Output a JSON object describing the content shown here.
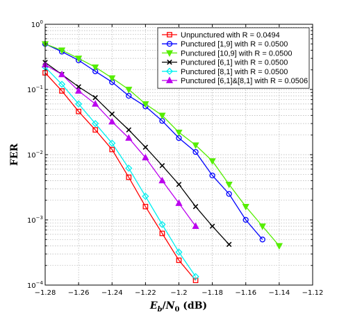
{
  "chart_data": {
    "type": "line",
    "title": "",
    "xlabel": "E_b/N_0 (dB)",
    "ylabel": "FER",
    "xlim": [
      -1.28,
      -1.12
    ],
    "ylim": [
      0.0001,
      1
    ],
    "yscale": "log",
    "grid": true,
    "legend_position": "top-right",
    "x_ticks": [
      -1.28,
      -1.26,
      -1.24,
      -1.22,
      -1.2,
      -1.18,
      -1.16,
      -1.14,
      -1.12
    ],
    "x_tick_labels": [
      "−1.28",
      "−1.26",
      "−1.24",
      "−1.22",
      "−1.2",
      "−1.18",
      "−1.16",
      "−1.14",
      "−1.12"
    ],
    "y_ticks": [
      0.0001,
      0.001,
      0.01,
      0.1,
      1
    ],
    "y_tick_labels": [
      {
        "base": "10",
        "exp": "−4"
      },
      {
        "base": "10",
        "exp": "−3"
      },
      {
        "base": "10",
        "exp": "−2"
      },
      {
        "base": "10",
        "exp": "−1"
      },
      {
        "base": "10",
        "exp": "0"
      }
    ],
    "series": [
      {
        "name": "Unpunctured with R = 0.0494",
        "color": "#ff0000",
        "marker": "square",
        "x": [
          -1.28,
          -1.27,
          -1.26,
          -1.25,
          -1.24,
          -1.23,
          -1.22,
          -1.21,
          -1.2,
          -1.19
        ],
        "y": [
          0.18,
          0.095,
          0.046,
          0.024,
          0.012,
          0.0045,
          0.0016,
          0.00062,
          0.00024,
          0.000118
        ]
      },
      {
        "name": "Punctured [1,9] with R = 0.0500",
        "color": "#0000ff",
        "marker": "circle",
        "x": [
          -1.28,
          -1.27,
          -1.26,
          -1.25,
          -1.24,
          -1.23,
          -1.22,
          -1.21,
          -1.2,
          -1.19,
          -1.18,
          -1.17,
          -1.16,
          -1.15
        ],
        "y": [
          0.5,
          0.38,
          0.28,
          0.19,
          0.13,
          0.08,
          0.055,
          0.033,
          0.018,
          0.011,
          0.0048,
          0.0025,
          0.001,
          0.0005
        ]
      },
      {
        "name": "Punctured [10,9] with R = 0.0500",
        "color": "#55ee00",
        "marker": "triangle-down",
        "x": [
          -1.28,
          -1.27,
          -1.26,
          -1.25,
          -1.24,
          -1.23,
          -1.22,
          -1.21,
          -1.2,
          -1.19,
          -1.18,
          -1.17,
          -1.16,
          -1.15,
          -1.14
        ],
        "y": [
          0.5,
          0.4,
          0.3,
          0.22,
          0.15,
          0.1,
          0.06,
          0.04,
          0.022,
          0.014,
          0.008,
          0.0035,
          0.0016,
          0.0008,
          0.0004
        ]
      },
      {
        "name": "Punctured [6,1] with R = 0.0500",
        "color": "#000000",
        "marker": "x",
        "x": [
          -1.28,
          -1.27,
          -1.26,
          -1.25,
          -1.24,
          -1.23,
          -1.22,
          -1.21,
          -1.2,
          -1.19,
          -1.18,
          -1.17
        ],
        "y": [
          0.26,
          0.17,
          0.11,
          0.075,
          0.042,
          0.024,
          0.013,
          0.0068,
          0.0035,
          0.0016,
          0.0008,
          0.00042
        ]
      },
      {
        "name": "Punctured [8,1] with R = 0.0500",
        "color": "#00f0f0",
        "marker": "diamond",
        "x": [
          -1.28,
          -1.27,
          -1.26,
          -1.25,
          -1.24,
          -1.23,
          -1.22,
          -1.21,
          -1.2,
          -1.19
        ],
        "y": [
          0.22,
          0.12,
          0.06,
          0.03,
          0.015,
          0.0062,
          0.0023,
          0.00085,
          0.00032,
          0.000135
        ]
      },
      {
        "name": "Punctured [6,1]&[8,1] with R = 0.0506",
        "color": "#bb00ee",
        "marker": "triangle-up",
        "x": [
          -1.28,
          -1.27,
          -1.26,
          -1.25,
          -1.24,
          -1.23,
          -1.22,
          -1.21,
          -1.2,
          -1.19
        ],
        "y": [
          0.24,
          0.17,
          0.095,
          0.06,
          0.032,
          0.018,
          0.009,
          0.004,
          0.0018,
          0.0008
        ]
      }
    ]
  }
}
